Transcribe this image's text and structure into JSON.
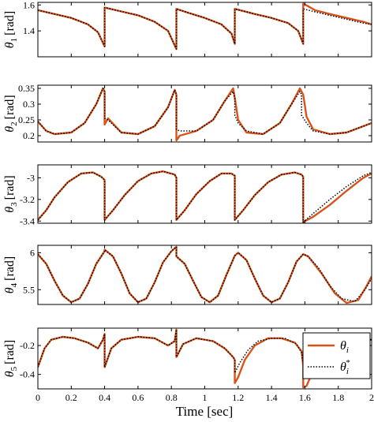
{
  "figure": {
    "xlabel": "Time [sec]",
    "legend": {
      "placement": "bottom-right of last panel",
      "entries": [
        {
          "label": "θi",
          "style": "solid",
          "color": "#D95319"
        },
        {
          "label": "θi*",
          "style": "dotted",
          "color": "#000000"
        }
      ]
    },
    "colors": {
      "actual": "#D95319",
      "desired": "#000000"
    }
  },
  "chart_data": [
    {
      "type": "line",
      "ylabel_symbol": "θ",
      "ylabel_sub": "1",
      "ylabel_unit": "[rad]",
      "xlim": [
        0,
        2
      ],
      "ylim": [
        1.2,
        1.62
      ],
      "yticks": [
        1.4,
        1.6
      ],
      "yticklabels": [
        "1.4",
        "1.6"
      ],
      "xticks": [
        0,
        0.2,
        0.4,
        0.6,
        0.8,
        1,
        1.2,
        1.4,
        1.6,
        1.8,
        2
      ],
      "series": [
        {
          "style": "solid",
          "x": [
            0,
            0.1,
            0.2,
            0.3,
            0.36,
            0.4,
            0.4,
            0.5,
            0.6,
            0.7,
            0.78,
            0.83,
            0.83,
            0.9,
            1.0,
            1.1,
            1.16,
            1.18,
            1.18,
            1.3,
            1.4,
            1.5,
            1.56,
            1.59,
            1.59,
            1.62,
            1.66,
            1.75,
            1.85,
            1.95,
            2.0
          ],
          "y": [
            1.56,
            1.53,
            1.5,
            1.45,
            1.39,
            1.28,
            1.58,
            1.55,
            1.52,
            1.47,
            1.4,
            1.26,
            1.57,
            1.54,
            1.5,
            1.45,
            1.38,
            1.3,
            1.57,
            1.53,
            1.5,
            1.46,
            1.4,
            1.3,
            1.61,
            1.59,
            1.56,
            1.53,
            1.5,
            1.47,
            1.45
          ]
        },
        {
          "style": "dotted",
          "x": [
            0,
            0.1,
            0.2,
            0.3,
            0.36,
            0.4,
            0.4,
            0.5,
            0.6,
            0.7,
            0.78,
            0.83,
            0.83,
            0.9,
            1.0,
            1.1,
            1.16,
            1.18,
            1.18,
            1.3,
            1.4,
            1.5,
            1.56,
            1.59,
            1.59,
            1.65,
            1.75,
            1.85,
            1.95,
            2.0
          ],
          "y": [
            1.56,
            1.53,
            1.5,
            1.45,
            1.39,
            1.28,
            1.58,
            1.55,
            1.52,
            1.47,
            1.4,
            1.26,
            1.57,
            1.54,
            1.5,
            1.45,
            1.38,
            1.3,
            1.57,
            1.53,
            1.5,
            1.46,
            1.4,
            1.3,
            1.57,
            1.55,
            1.52,
            1.49,
            1.46,
            1.45
          ]
        }
      ]
    },
    {
      "type": "line",
      "ylabel_symbol": "θ",
      "ylabel_sub": "2",
      "ylabel_unit": "[rad]",
      "xlim": [
        0,
        2
      ],
      "ylim": [
        0.18,
        0.36
      ],
      "yticks": [
        0.2,
        0.25,
        0.3,
        0.35
      ],
      "yticklabels": [
        "0.2",
        "0.25",
        "0.3",
        "0.35"
      ],
      "xticks": [
        0,
        0.2,
        0.4,
        0.6,
        0.8,
        1,
        1.2,
        1.4,
        1.6,
        1.8,
        2
      ],
      "series": [
        {
          "style": "solid",
          "x": [
            0,
            0.05,
            0.1,
            0.2,
            0.28,
            0.35,
            0.39,
            0.4,
            0.4,
            0.42,
            0.5,
            0.6,
            0.7,
            0.78,
            0.82,
            0.83,
            0.83,
            0.85,
            0.95,
            1.05,
            1.12,
            1.17,
            1.18,
            1.2,
            1.25,
            1.35,
            1.45,
            1.52,
            1.57,
            1.59,
            1.61,
            1.65,
            1.75,
            1.85,
            1.95,
            2.0
          ],
          "y": [
            0.245,
            0.215,
            0.205,
            0.21,
            0.24,
            0.3,
            0.35,
            0.34,
            0.235,
            0.255,
            0.21,
            0.205,
            0.23,
            0.29,
            0.345,
            0.33,
            0.185,
            0.2,
            0.215,
            0.25,
            0.31,
            0.35,
            0.32,
            0.25,
            0.21,
            0.205,
            0.24,
            0.3,
            0.35,
            0.33,
            0.26,
            0.22,
            0.205,
            0.21,
            0.23,
            0.24
          ]
        },
        {
          "style": "dotted",
          "x": [
            0,
            0.05,
            0.1,
            0.2,
            0.28,
            0.35,
            0.39,
            0.4,
            0.4,
            0.42,
            0.5,
            0.6,
            0.7,
            0.78,
            0.82,
            0.83,
            0.83,
            0.85,
            0.95,
            1.05,
            1.12,
            1.17,
            1.18,
            1.18,
            1.2,
            1.25,
            1.35,
            1.45,
            1.52,
            1.57,
            1.58,
            1.58,
            1.61,
            1.65,
            1.75,
            1.85,
            1.95,
            2.0
          ],
          "y": [
            0.245,
            0.215,
            0.205,
            0.21,
            0.24,
            0.3,
            0.35,
            0.34,
            0.255,
            0.25,
            0.21,
            0.205,
            0.23,
            0.29,
            0.345,
            0.33,
            0.22,
            0.215,
            0.215,
            0.25,
            0.31,
            0.34,
            0.32,
            0.265,
            0.24,
            0.215,
            0.205,
            0.24,
            0.3,
            0.34,
            0.33,
            0.265,
            0.24,
            0.215,
            0.205,
            0.21,
            0.23,
            0.24
          ]
        }
      ]
    },
    {
      "type": "line",
      "ylabel_symbol": "θ",
      "ylabel_sub": "3",
      "ylabel_unit": "[rad]",
      "xlim": [
        0,
        2
      ],
      "ylim": [
        -3.42,
        -2.88
      ],
      "yticks": [
        -3.4,
        -3.2,
        -3
      ],
      "yticklabels": [
        "-3.4",
        "-3.2",
        "-3"
      ],
      "xticks": [
        0,
        0.2,
        0.4,
        0.6,
        0.8,
        1,
        1.2,
        1.4,
        1.6,
        1.8,
        2
      ],
      "series": [
        {
          "style": "solid",
          "x": [
            0,
            0.05,
            0.1,
            0.18,
            0.26,
            0.33,
            0.38,
            0.4,
            0.4,
            0.45,
            0.52,
            0.6,
            0.68,
            0.75,
            0.82,
            0.83,
            0.83,
            0.88,
            0.95,
            1.03,
            1.1,
            1.16,
            1.18,
            1.18,
            1.23,
            1.3,
            1.38,
            1.46,
            1.54,
            1.58,
            1.59,
            1.59,
            1.65,
            1.75,
            1.85,
            1.95,
            2.0
          ],
          "y": [
            -3.39,
            -3.3,
            -3.18,
            -3.04,
            -2.96,
            -2.95,
            -2.99,
            -3.02,
            -3.39,
            -3.3,
            -3.16,
            -3.03,
            -2.96,
            -2.94,
            -2.97,
            -3.0,
            -3.39,
            -3.3,
            -3.15,
            -3.03,
            -2.96,
            -2.96,
            -2.98,
            -3.39,
            -3.3,
            -3.16,
            -3.04,
            -2.97,
            -2.95,
            -2.97,
            -2.99,
            -3.41,
            -3.36,
            -3.25,
            -3.12,
            -3.0,
            -2.96
          ]
        },
        {
          "style": "dotted",
          "x": [
            0,
            0.05,
            0.1,
            0.18,
            0.26,
            0.33,
            0.38,
            0.4,
            0.4,
            0.45,
            0.52,
            0.6,
            0.68,
            0.75,
            0.82,
            0.83,
            0.83,
            0.88,
            0.95,
            1.03,
            1.1,
            1.16,
            1.18,
            1.18,
            1.23,
            1.3,
            1.38,
            1.46,
            1.54,
            1.58,
            1.59,
            1.59,
            1.65,
            1.75,
            1.85,
            1.95,
            2.0
          ],
          "y": [
            -3.39,
            -3.3,
            -3.18,
            -3.04,
            -2.96,
            -2.95,
            -2.99,
            -3.02,
            -3.39,
            -3.3,
            -3.16,
            -3.03,
            -2.96,
            -2.94,
            -2.97,
            -3.0,
            -3.39,
            -3.3,
            -3.15,
            -3.03,
            -2.96,
            -2.96,
            -2.98,
            -3.39,
            -3.3,
            -3.16,
            -3.04,
            -2.97,
            -2.95,
            -2.97,
            -2.99,
            -3.41,
            -3.33,
            -3.2,
            -3.08,
            -2.98,
            -2.95
          ]
        }
      ]
    },
    {
      "type": "line",
      "ylabel_symbol": "θ",
      "ylabel_sub": "4",
      "ylabel_unit": "[rad]",
      "xlim": [
        0,
        2
      ],
      "ylim": [
        5.3,
        6.1
      ],
      "yticks": [
        5.5,
        6
      ],
      "yticklabels": [
        "5.5",
        "6"
      ],
      "xticks": [
        0,
        0.2,
        0.4,
        0.6,
        0.8,
        1,
        1.2,
        1.4,
        1.6,
        1.8,
        2
      ],
      "series": [
        {
          "style": "solid",
          "x": [
            0,
            0.05,
            0.1,
            0.15,
            0.2,
            0.25,
            0.3,
            0.35,
            0.4,
            0.4,
            0.45,
            0.5,
            0.55,
            0.6,
            0.65,
            0.7,
            0.75,
            0.8,
            0.83,
            0.83,
            0.88,
            0.93,
            0.98,
            1.03,
            1.08,
            1.13,
            1.18,
            1.2,
            1.25,
            1.3,
            1.35,
            1.4,
            1.45,
            1.5,
            1.55,
            1.59,
            1.62,
            1.7,
            1.78,
            1.85,
            1.92,
            1.97,
            2.0
          ],
          "y": [
            5.98,
            5.85,
            5.62,
            5.42,
            5.33,
            5.38,
            5.58,
            5.85,
            6.02,
            6.04,
            5.95,
            5.72,
            5.45,
            5.33,
            5.38,
            5.6,
            5.87,
            6.02,
            6.08,
            5.95,
            5.85,
            5.62,
            5.4,
            5.33,
            5.42,
            5.7,
            5.96,
            6.0,
            5.9,
            5.65,
            5.42,
            5.33,
            5.38,
            5.6,
            5.88,
            5.98,
            5.95,
            5.72,
            5.45,
            5.32,
            5.36,
            5.55,
            5.68
          ]
        },
        {
          "style": "dotted",
          "x": [
            0,
            0.05,
            0.1,
            0.15,
            0.2,
            0.25,
            0.3,
            0.35,
            0.4,
            0.4,
            0.45,
            0.5,
            0.55,
            0.6,
            0.65,
            0.7,
            0.75,
            0.8,
            0.83,
            0.83,
            0.88,
            0.93,
            0.98,
            1.03,
            1.08,
            1.13,
            1.18,
            1.2,
            1.25,
            1.3,
            1.35,
            1.4,
            1.45,
            1.5,
            1.55,
            1.59,
            1.62,
            1.68,
            1.75,
            1.82,
            1.9,
            1.96,
            2.0
          ],
          "y": [
            5.98,
            5.85,
            5.62,
            5.42,
            5.33,
            5.38,
            5.58,
            5.85,
            6.02,
            6.04,
            5.95,
            5.72,
            5.45,
            5.33,
            5.38,
            5.6,
            5.87,
            6.02,
            6.08,
            5.95,
            5.85,
            5.62,
            5.4,
            5.33,
            5.42,
            5.7,
            5.96,
            6.0,
            5.9,
            5.65,
            5.42,
            5.33,
            5.38,
            5.6,
            5.88,
            5.98,
            5.95,
            5.8,
            5.55,
            5.38,
            5.34,
            5.5,
            5.65
          ]
        }
      ]
    },
    {
      "type": "line",
      "ylabel_symbol": "θ",
      "ylabel_sub": "5",
      "ylabel_unit": "[rad]",
      "xlim": [
        0,
        2
      ],
      "ylim": [
        -0.5,
        -0.08
      ],
      "yticks": [
        -0.4,
        -0.2
      ],
      "yticklabels": [
        "-0.4",
        "-0.2"
      ],
      "xticks": [
        0,
        0.2,
        0.4,
        0.6,
        0.8,
        1,
        1.2,
        1.4,
        1.6,
        1.8,
        2
      ],
      "xticklabels": [
        "0",
        "0.2",
        "0.4",
        "0.6",
        "0.8",
        "1",
        "1.2",
        "1.4",
        "1.6",
        "1.8",
        "2"
      ],
      "series": [
        {
          "style": "solid",
          "x": [
            0,
            0.04,
            0.08,
            0.15,
            0.22,
            0.3,
            0.36,
            0.39,
            0.4,
            0.4,
            0.44,
            0.5,
            0.6,
            0.7,
            0.78,
            0.82,
            0.83,
            0.83,
            0.87,
            0.95,
            1.05,
            1.12,
            1.17,
            1.18,
            1.18,
            1.2,
            1.24,
            1.3,
            1.38,
            1.46,
            1.54,
            1.58,
            1.59,
            1.59,
            1.61,
            1.64,
            1.7,
            1.8,
            1.9,
            2.0
          ],
          "y": [
            -0.35,
            -0.22,
            -0.16,
            -0.14,
            -0.15,
            -0.18,
            -0.22,
            -0.16,
            -0.12,
            -0.35,
            -0.22,
            -0.16,
            -0.14,
            -0.15,
            -0.2,
            -0.17,
            -0.09,
            -0.28,
            -0.19,
            -0.15,
            -0.17,
            -0.22,
            -0.28,
            -0.3,
            -0.46,
            -0.42,
            -0.3,
            -0.2,
            -0.15,
            -0.15,
            -0.18,
            -0.24,
            -0.34,
            -0.49,
            -0.48,
            -0.4,
            -0.27,
            -0.2,
            -0.17,
            -0.16
          ]
        },
        {
          "style": "dotted",
          "x": [
            0,
            0.04,
            0.08,
            0.15,
            0.22,
            0.3,
            0.36,
            0.39,
            0.4,
            0.4,
            0.44,
            0.5,
            0.6,
            0.7,
            0.78,
            0.82,
            0.83,
            0.83,
            0.87,
            0.95,
            1.05,
            1.12,
            1.17,
            1.18,
            1.18,
            1.21,
            1.26,
            1.32,
            1.4,
            1.48,
            1.55,
            1.58,
            1.59,
            1.59,
            1.62,
            1.67,
            1.74,
            1.82,
            1.9,
            2.0
          ],
          "y": [
            -0.35,
            -0.22,
            -0.16,
            -0.14,
            -0.15,
            -0.18,
            -0.22,
            -0.16,
            -0.12,
            -0.35,
            -0.22,
            -0.16,
            -0.14,
            -0.15,
            -0.2,
            -0.17,
            -0.09,
            -0.28,
            -0.19,
            -0.15,
            -0.17,
            -0.22,
            -0.28,
            -0.3,
            -0.39,
            -0.32,
            -0.23,
            -0.17,
            -0.15,
            -0.15,
            -0.19,
            -0.25,
            -0.32,
            -0.4,
            -0.33,
            -0.25,
            -0.2,
            -0.17,
            -0.16,
            -0.16
          ]
        }
      ]
    }
  ]
}
